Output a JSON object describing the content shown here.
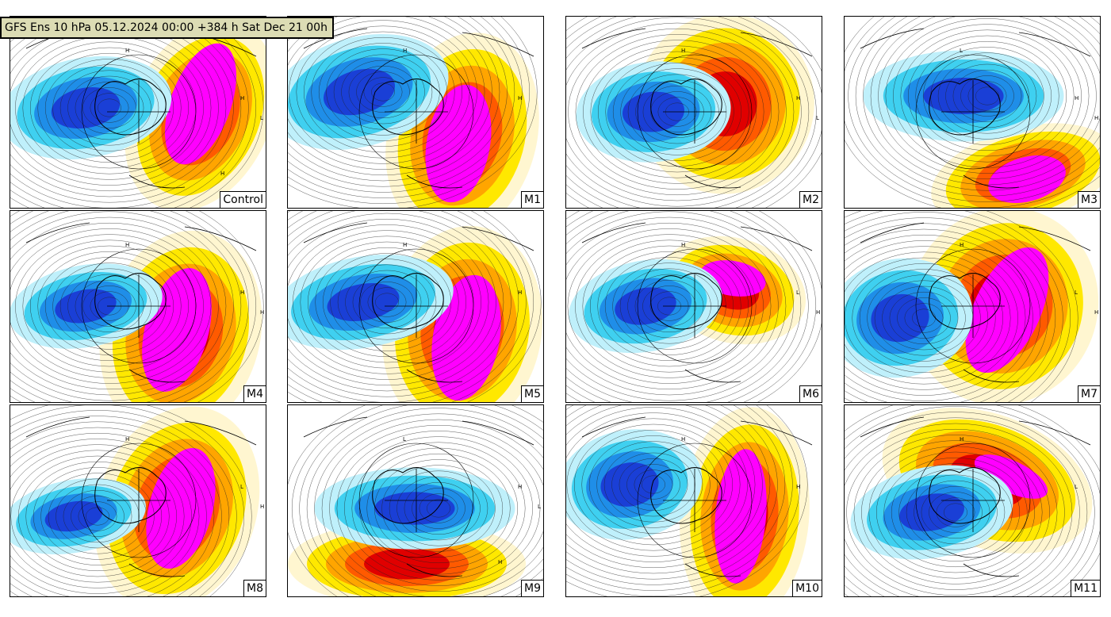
{
  "title": "GFS Ens 10 hPa 05.12.2024 00:00 +384 h Sat Dec 21 00h",
  "colors": {
    "cold_deep": "#1a3fd6",
    "cold_mid": "#1f8ee8",
    "cold_light": "#3fd0f0",
    "cold_pale": "#bff0fb",
    "neutral": "#ffffff",
    "warm_pale": "#fff6d0",
    "warm_yellow": "#ffe800",
    "warm_orange": "#ffa500",
    "warm_dark_orange": "#ff5a00",
    "warm_red": "#e00000",
    "warm_magenta": "#ff00ff",
    "contour": "#222222"
  },
  "panels": [
    {
      "label": "Control",
      "pressure_marks": [
        "H",
        "H",
        "L",
        "H"
      ]
    },
    {
      "label": "M1",
      "pressure_marks": [
        "H",
        "H"
      ]
    },
    {
      "label": "M2",
      "pressure_marks": [
        "H",
        "H",
        "L"
      ]
    },
    {
      "label": "M3",
      "pressure_marks": [
        "H",
        "L",
        "H"
      ]
    },
    {
      "label": "M4",
      "pressure_marks": [
        "H",
        "H",
        "H"
      ]
    },
    {
      "label": "M5",
      "pressure_marks": [
        "H",
        "H"
      ]
    },
    {
      "label": "M6",
      "pressure_marks": [
        "L",
        "H",
        "H"
      ]
    },
    {
      "label": "M7",
      "pressure_marks": [
        "L",
        "H",
        "H"
      ]
    },
    {
      "label": "M8",
      "pressure_marks": [
        "L",
        "H",
        "H"
      ]
    },
    {
      "label": "M9",
      "pressure_marks": [
        "H",
        "L",
        "L",
        "H"
      ]
    },
    {
      "label": "M10",
      "pressure_marks": [
        "H",
        "H"
      ]
    },
    {
      "label": "M11",
      "pressure_marks": [
        "L",
        "H"
      ]
    }
  ]
}
